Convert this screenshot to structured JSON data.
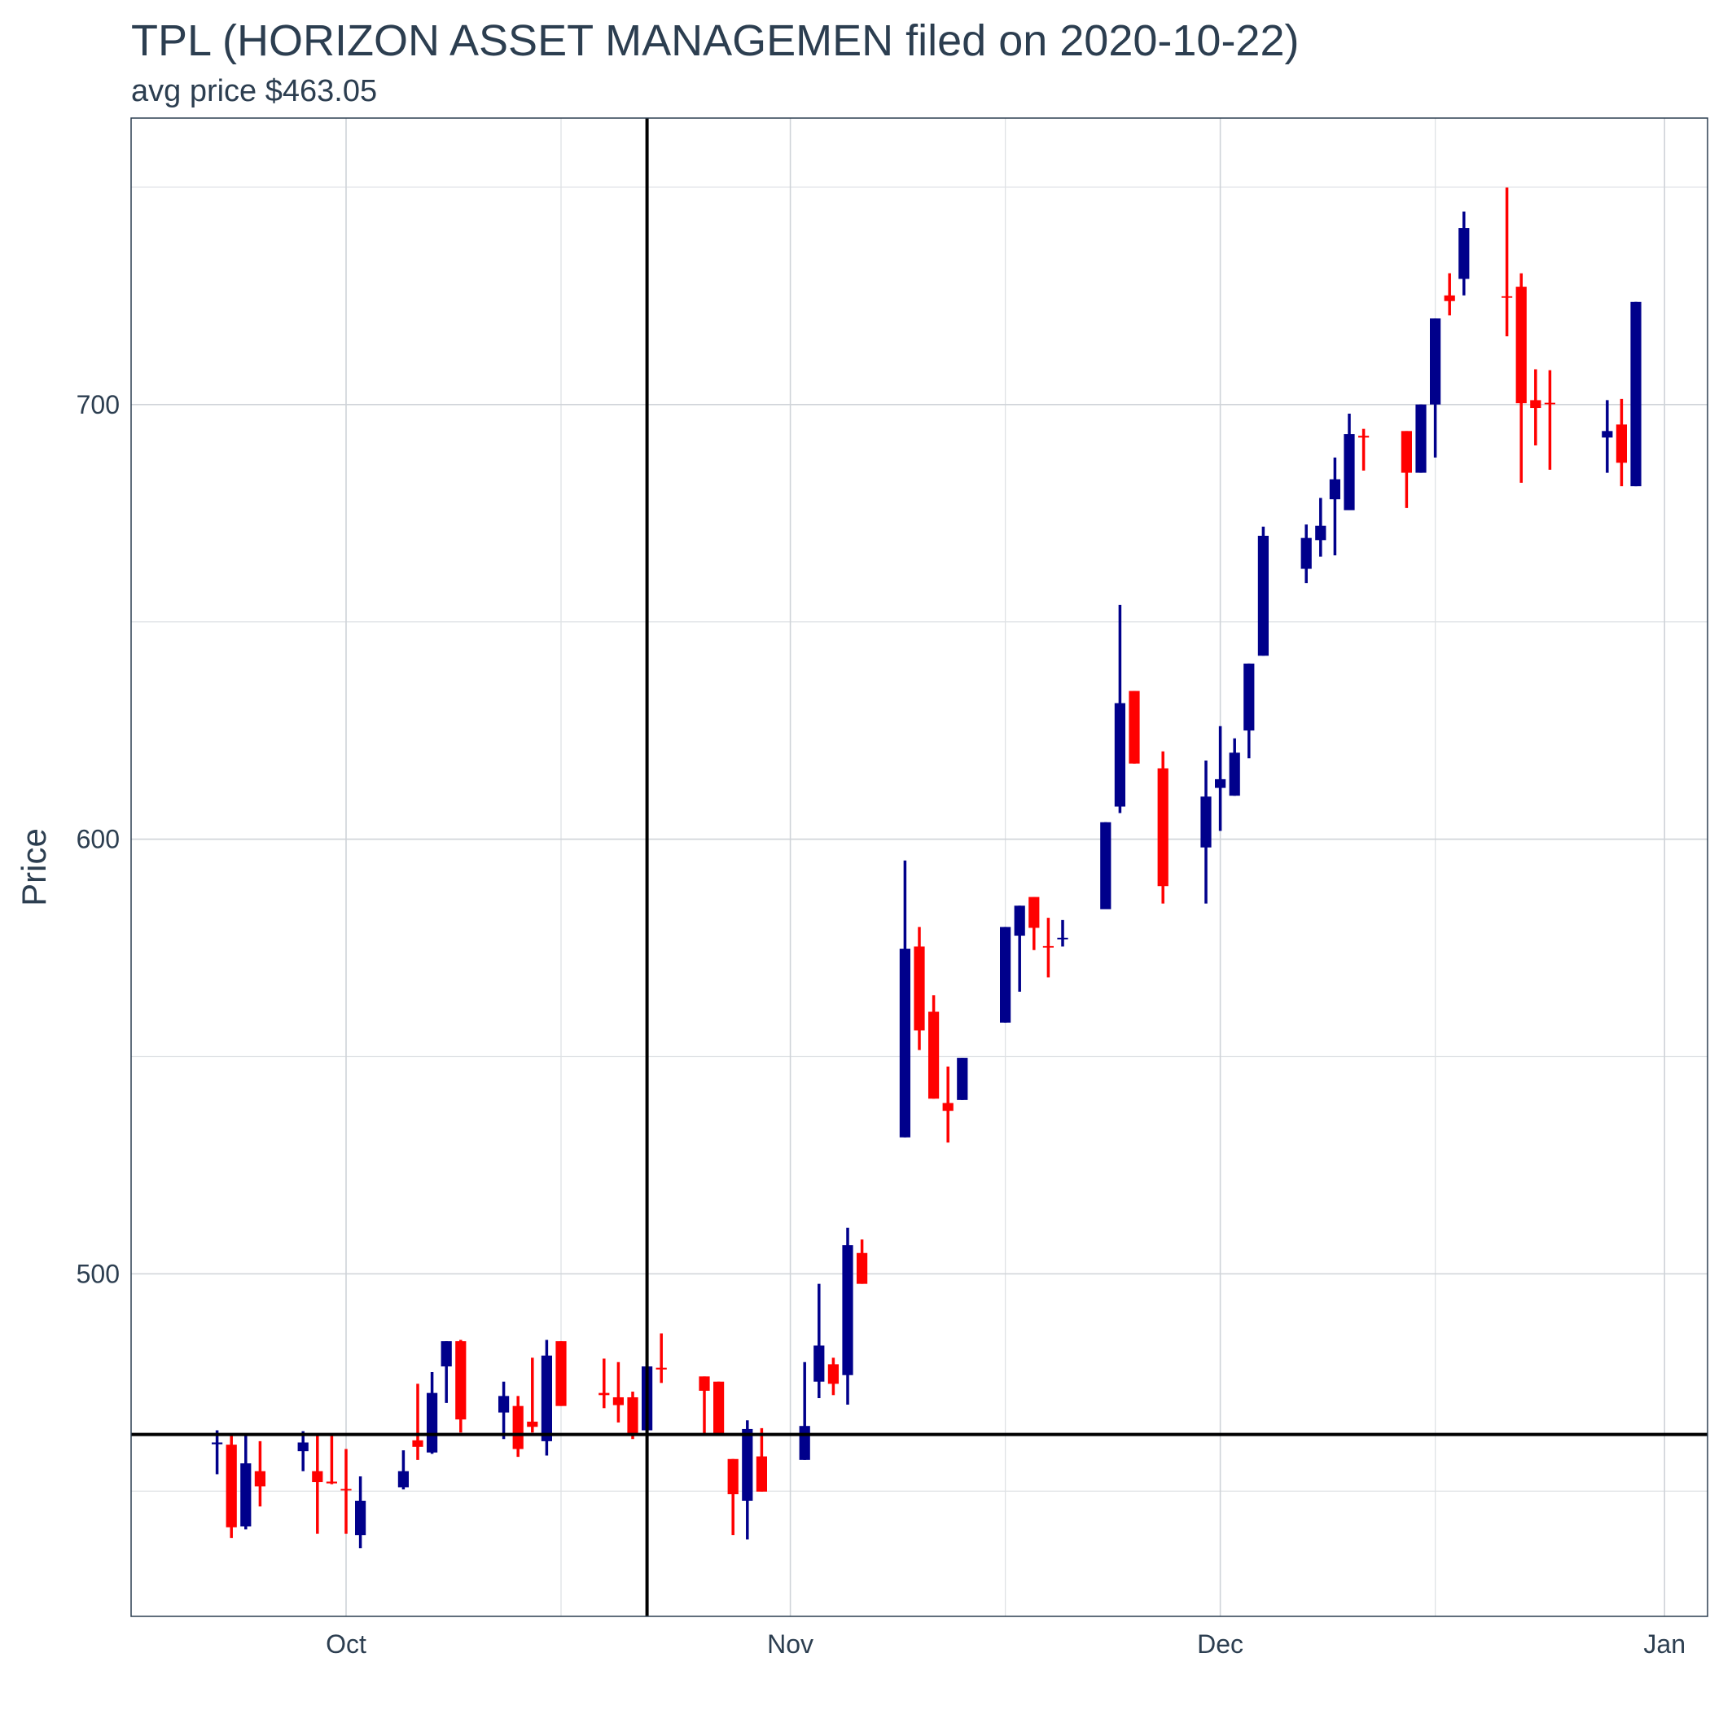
{
  "chart_data": {
    "type": "candlestick",
    "title": "TPL (HORIZON ASSET MANAGEMEN filed on 2020-10-22)",
    "subtitle": "avg price $463.05",
    "y_label": "Price",
    "x": [
      "2020-09-22",
      "2020-09-23",
      "2020-09-24",
      "2020-09-25",
      "2020-09-28",
      "2020-09-29",
      "2020-09-30",
      "2020-10-01",
      "2020-10-02",
      "2020-10-05",
      "2020-10-06",
      "2020-10-07",
      "2020-10-08",
      "2020-10-09",
      "2020-10-12",
      "2020-10-13",
      "2020-10-14",
      "2020-10-15",
      "2020-10-16",
      "2020-10-19",
      "2020-10-20",
      "2020-10-21",
      "2020-10-22",
      "2020-10-23",
      "2020-10-26",
      "2020-10-27",
      "2020-10-28",
      "2020-10-29",
      "2020-10-30",
      "2020-11-02",
      "2020-11-03",
      "2020-11-04",
      "2020-11-05",
      "2020-11-06",
      "2020-11-09",
      "2020-11-10",
      "2020-11-11",
      "2020-11-12",
      "2020-11-13",
      "2020-11-16",
      "2020-11-17",
      "2020-11-18",
      "2020-11-19",
      "2020-11-20",
      "2020-11-23",
      "2020-11-24",
      "2020-11-25",
      "2020-11-27",
      "2020-11-30",
      "2020-12-01",
      "2020-12-02",
      "2020-12-03",
      "2020-12-04",
      "2020-12-07",
      "2020-12-08",
      "2020-12-09",
      "2020-12-10",
      "2020-12-11",
      "2020-12-14",
      "2020-12-15",
      "2020-12-16",
      "2020-12-17",
      "2020-12-18",
      "2020-12-21",
      "2020-12-22",
      "2020-12-23",
      "2020-12-24",
      "2020-12-28",
      "2020-12-29",
      "2020-12-30"
    ],
    "open": [
      460.8,
      460.7,
      441.9,
      454.6,
      459.2,
      454.6,
      452.2,
      450.5,
      439.9,
      450.9,
      461.7,
      458.9,
      478.7,
      484.5,
      468.1,
      469.6,
      466.0,
      461.5,
      484.5,
      472.6,
      471.6,
      471.6,
      464.0,
      478.4,
      476.4,
      475.2,
      457.4,
      447.8,
      458.0,
      457.2,
      475.2,
      479.2,
      476.7,
      504.8,
      531.4,
      575.3,
      560.3,
      539.3,
      540.0,
      557.8,
      577.8,
      586.7,
      575.4,
      577.0,
      583.9,
      607.5,
      634.1,
      616.3,
      598.1,
      611.8,
      610.0,
      625.0,
      642.2,
      662.2,
      668.8,
      678.2,
      675.7,
      692.8,
      693.9,
      684.3,
      700.0,
      725.1,
      728.9,
      724.9,
      727.1,
      701.0,
      700.4,
      692.4,
      695.4,
      681.2
    ],
    "high": [
      464.0,
      463.3,
      462.7,
      461.5,
      463.8,
      462.7,
      462.7,
      459.7,
      453.4,
      459.4,
      474.7,
      477.4,
      484.5,
      484.8,
      475.2,
      471.9,
      480.7,
      484.8,
      484.5,
      480.5,
      479.7,
      472.9,
      479.7,
      486.3,
      476.4,
      475.2,
      457.4,
      466.3,
      464.5,
      479.7,
      497.7,
      480.7,
      510.6,
      507.9,
      595.1,
      579.8,
      564.1,
      547.7,
      549.7,
      579.8,
      584.7,
      586.7,
      581.9,
      581.4,
      603.9,
      653.9,
      634.1,
      620.2,
      618.1,
      626.0,
      623.2,
      640.4,
      671.9,
      672.4,
      678.5,
      687.8,
      697.9,
      694.4,
      693.9,
      700.0,
      719.8,
      730.2,
      744.4,
      749.9,
      730.2,
      708.1,
      707.9,
      701.0,
      701.3,
      723.6
    ],
    "low": [
      453.9,
      439.2,
      441.2,
      446.5,
      454.6,
      440.2,
      451.6,
      440.2,
      436.9,
      450.4,
      457.2,
      458.6,
      470.3,
      463.5,
      462.0,
      457.9,
      463.5,
      458.2,
      469.6,
      469.1,
      465.8,
      462.0,
      463.2,
      474.9,
      462.7,
      462.7,
      439.9,
      438.9,
      449.9,
      457.2,
      471.4,
      472.1,
      469.9,
      497.7,
      531.4,
      551.5,
      540.3,
      530.2,
      540.0,
      557.8,
      564.9,
      574.5,
      568.2,
      575.3,
      583.9,
      606.0,
      617.4,
      585.2,
      585.2,
      601.9,
      610.0,
      618.6,
      642.2,
      658.9,
      665.0,
      665.3,
      675.7,
      684.8,
      676.2,
      684.3,
      687.8,
      720.5,
      725.1,
      715.7,
      682.0,
      690.6,
      685.0,
      684.3,
      681.2,
      681.2
    ],
    "close": [
      461.2,
      441.7,
      456.4,
      451.1,
      461.2,
      452.1,
      451.8,
      450.3,
      447.8,
      454.6,
      460.2,
      472.6,
      484.5,
      466.5,
      471.9,
      459.7,
      464.8,
      481.2,
      469.6,
      472.1,
      469.8,
      462.7,
      478.7,
      478.0,
      473.1,
      462.7,
      449.3,
      464.3,
      449.9,
      465.0,
      483.5,
      474.7,
      506.6,
      497.7,
      574.8,
      556.0,
      540.3,
      537.5,
      549.7,
      579.8,
      584.7,
      579.6,
      575.2,
      577.3,
      603.9,
      631.3,
      617.4,
      589.2,
      609.8,
      613.8,
      619.9,
      640.4,
      669.8,
      669.3,
      672.1,
      682.8,
      693.2,
      692.4,
      684.3,
      700.0,
      719.8,
      723.8,
      740.6,
      724.6,
      700.3,
      699.2,
      700.2,
      693.9,
      686.6,
      723.6
    ],
    "up_color": "#00008b",
    "down_color": "#ff0000",
    "ylim": [
      421.2,
      765.9
    ],
    "yticks": [
      500,
      600,
      700
    ],
    "yminor": [
      450,
      550,
      650,
      750
    ],
    "xlim": [
      "2020-09-16",
      "2021-01-04"
    ],
    "xticks": [
      {
        "value": "2020-10-01",
        "label": "Oct"
      },
      {
        "value": "2020-11-01",
        "label": "Nov"
      },
      {
        "value": "2020-12-01",
        "label": "Dec"
      },
      {
        "value": "2021-01-01",
        "label": "Jan"
      }
    ],
    "xminor": [
      "2020-10-16",
      "2020-11-16",
      "2020-12-16"
    ],
    "hline": 463.05,
    "vline": "2020-10-22",
    "grid": true
  }
}
